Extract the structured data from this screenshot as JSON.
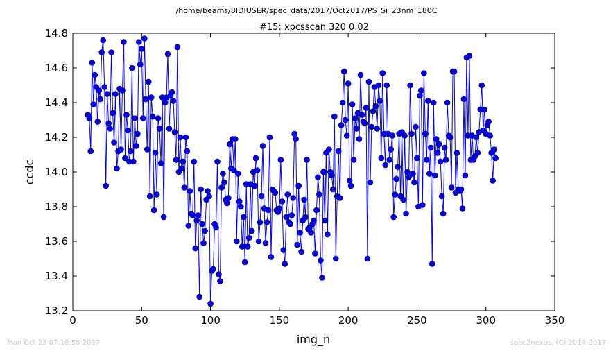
{
  "footer": {
    "timestamp": "Mon Oct 23 07:18:50 2017",
    "credit": "spec2nexus, (C) 2014-2017"
  },
  "chart_data": {
    "type": "line",
    "suptitle": "/home/beams/8IDIUSER/spec_data/2017/Oct2017/PS_Si_23nm_180C",
    "title": "#15: xpcsscan 320 0.02",
    "xlabel": "img_n",
    "ylabel": "ccdc",
    "xlim": [
      0,
      350
    ],
    "ylim": [
      13.2,
      14.8
    ],
    "xticks": [
      "0",
      "50",
      "100",
      "150",
      "200",
      "250",
      "300",
      "350"
    ],
    "yticks": [
      "13.2",
      "13.4",
      "13.6",
      "13.8",
      "14.0",
      "14.2",
      "14.4",
      "14.6",
      "14.8"
    ],
    "grid": false,
    "legend": "none",
    "series_color": "#0000ff",
    "x_start": 11,
    "y": [
      14.33,
      14.31,
      14.12,
      14.63,
      14.39,
      14.56,
      14.49,
      14.29,
      14.47,
      14.42,
      14.69,
      14.76,
      14.49,
      13.92,
      14.45,
      14.28,
      14.25,
      14.69,
      14.34,
      14.17,
      14.45,
      14.02,
      14.12,
      14.48,
      14.13,
      14.47,
      14.75,
      14.08,
      14.33,
      14.24,
      14.06,
      14.12,
      14.6,
      14.06,
      14.31,
      14.15,
      14.22,
      14.75,
      14.62,
      14.71,
      14.31,
      14.77,
      14.42,
      14.13,
      14.52,
      13.86,
      14.43,
      14.32,
      13.78,
      14.11,
      13.87,
      14.31,
      14.25,
      14.05,
      14.43,
      13.74,
      14.4,
      14.43,
      14.68,
      14.25,
      14.44,
      14.46,
      14.41,
      14.23,
      14.07,
      14.72,
      14.0,
      14.2,
      14.02,
      14.06,
      13.91,
      14.2,
      14.12,
      13.69,
      13.89,
      13.76,
      13.75,
      14.06,
      13.56,
      13.72,
      13.75,
      13.28,
      13.9,
      13.7,
      13.59,
      13.66,
      13.84,
      13.89,
      13.86,
      13.24,
      13.43,
      13.44,
      13.7,
      13.68,
      14.06,
      13.41,
      13.37,
      13.91,
      13.99,
      13.94,
      13.84,
      13.82,
      13.85,
      14.16,
      14.02,
      14.19,
      14.01,
      14.19,
      13.6,
      13.99,
      13.83,
      13.8,
      13.57,
      13.74,
      13.48,
      13.93,
      13.57,
      13.62,
      13.93,
      13.66,
      14.0,
      13.92,
      14.08,
      14.01,
      13.6,
      13.71,
      13.86,
      14.15,
      13.79,
      13.59,
      13.71,
      13.78,
      14.2,
      13.51,
      13.9,
      13.89,
      13.88,
      13.78,
      13.77,
      13.79,
      14.07,
      13.83,
      13.55,
      13.47,
      13.74,
      13.87,
      13.71,
      13.7,
      13.75,
      13.85,
      14.22,
      14.19,
      13.58,
      13.92,
      13.65,
      13.54,
      13.72,
      13.84,
      13.74,
      14.07,
      13.67,
      13.68,
      13.65,
      13.7,
      13.72,
      13.53,
      13.78,
      13.97,
      13.87,
      13.49,
      13.39,
      14.0,
      13.72,
      14.11,
      13.64,
      14.13,
      14.0,
      13.98,
      13.9,
      14.32,
      13.5,
      13.86,
      14.12,
      13.85,
      14.27,
      14.4,
      14.58,
      14.3,
      14.21,
      14.51,
      13.95,
      13.92,
      14.39,
      14.07,
      14.31,
      14.25,
      14.34,
      14.19,
      14.56,
      14.33,
      14.29,
      14.28,
      14.37,
      13.5,
      14.52,
      13.94,
      14.26,
      14.35,
      14.49,
      14.38,
      14.25,
      14.5,
      14.41,
      14.08,
      14.57,
      14.22,
      14.04,
      14.5,
      14.22,
      14.07,
      14.13,
      14.21,
      13.74,
      13.87,
      13.96,
      14.03,
      14.22,
      13.86,
      14.23,
      13.84,
      14.21,
      13.76,
      14.0,
      13.97,
      14.5,
      14.22,
      13.99,
      13.94,
      14.26,
      14.08,
      13.8,
      14.44,
      14.47,
      13.81,
      14.57,
      14.22,
      14.07,
      14.41,
      13.99,
      14.14,
      13.47,
      14.4,
      13.98,
      14.19,
      14.11,
      14.16,
      14.06,
      13.86,
      13.76,
      14.14,
      14.07,
      14.4,
      14.21,
      14.2,
      13.91,
      14.58,
      14.58,
      13.88,
      14.11,
      13.9,
      13.89,
      13.9,
      13.79,
      14.42,
      13.98,
      14.66,
      14.21,
      14.67,
      14.07,
      14.21,
      14.07,
      14.09,
      14.2,
      14.11,
      14.23,
      14.36,
      14.5,
      14.24,
      14.36,
      14.22,
      14.27,
      14.29,
      14.21,
      14.11,
      13.95,
      14.13,
      14.08
    ]
  }
}
